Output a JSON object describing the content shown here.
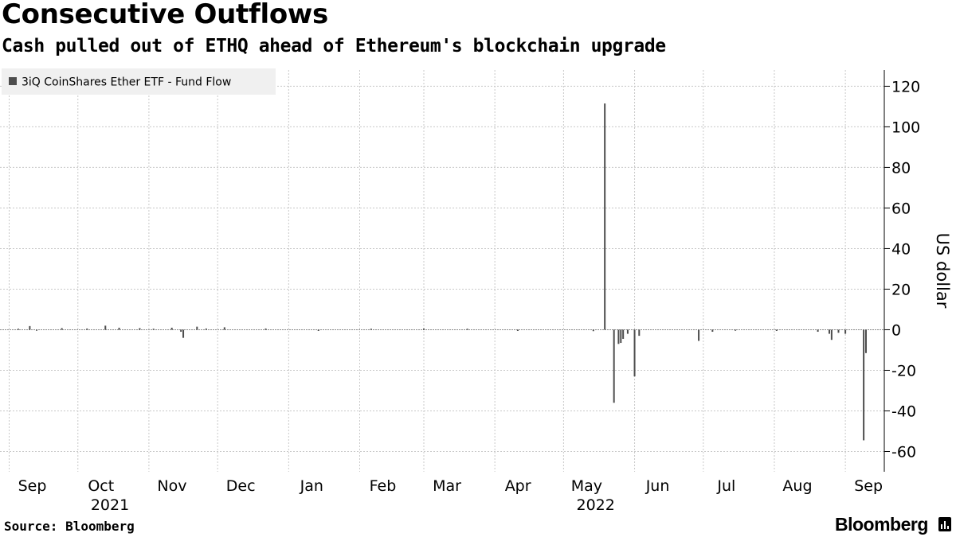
{
  "header": {
    "title": "Consecutive Outflows",
    "subtitle": "Cash pulled out of ETHQ ahead of Ethereum's blockchain upgrade"
  },
  "footer": {
    "source": "Source: Bloomberg",
    "brand": "Bloomberg"
  },
  "chart_data": {
    "type": "bar",
    "title": "Consecutive Outflows",
    "subtitle": "Cash pulled out of ETHQ ahead of Ethereum's blockchain upgrade",
    "ylabel": "US dollar",
    "xlabel": "",
    "ylim": [
      -70,
      128
    ],
    "yticks": [
      -60,
      -40,
      -20,
      0,
      20,
      40,
      60,
      80,
      100,
      120
    ],
    "x_range": [
      "2021-08-28",
      "2022-09-18"
    ],
    "x_tick_labels": [
      {
        "date": "2021-09-01",
        "label": "Sep"
      },
      {
        "date": "2021-10-01",
        "label": "Oct"
      },
      {
        "date": "2021-11-01",
        "label": "Nov"
      },
      {
        "date": "2021-12-01",
        "label": "Dec"
      },
      {
        "date": "2022-01-01",
        "label": "Jan"
      },
      {
        "date": "2022-02-01",
        "label": "Feb"
      },
      {
        "date": "2022-03-01",
        "label": "Mar"
      },
      {
        "date": "2022-04-01",
        "label": "Apr"
      },
      {
        "date": "2022-05-01",
        "label": "May"
      },
      {
        "date": "2022-06-01",
        "label": "Jun"
      },
      {
        "date": "2022-07-01",
        "label": "Jul"
      },
      {
        "date": "2022-08-01",
        "label": "Aug"
      },
      {
        "date": "2022-09-01",
        "label": "Sep"
      }
    ],
    "year_labels": [
      {
        "date": "2021-10-15",
        "label": "2021"
      },
      {
        "date": "2022-05-15",
        "label": "2022"
      }
    ],
    "grid": true,
    "legend_position": "top-left",
    "colors": {
      "bar": "#4d4d4d",
      "grid": "#c8c8c8",
      "legend_bg": "#f0f0f0"
    },
    "series": [
      {
        "name": "3iQ CoinShares Ether ETF - Fund Flow",
        "color": "#4d4d4d",
        "points": [
          {
            "x": "2021-09-05",
            "y": 0.5
          },
          {
            "x": "2021-09-10",
            "y": 1.8
          },
          {
            "x": "2021-09-13",
            "y": -0.5
          },
          {
            "x": "2021-09-24",
            "y": 0.8
          },
          {
            "x": "2021-10-05",
            "y": 0.6
          },
          {
            "x": "2021-10-13",
            "y": 2.0
          },
          {
            "x": "2021-10-19",
            "y": 1.0
          },
          {
            "x": "2021-10-28",
            "y": 0.8
          },
          {
            "x": "2021-11-03",
            "y": 0.5
          },
          {
            "x": "2021-11-11",
            "y": 1.0
          },
          {
            "x": "2021-11-15",
            "y": -1.0
          },
          {
            "x": "2021-11-16",
            "y": -4.0
          },
          {
            "x": "2021-11-22",
            "y": 1.5
          },
          {
            "x": "2021-11-26",
            "y": 0.6
          },
          {
            "x": "2021-12-04",
            "y": 1.2
          },
          {
            "x": "2021-12-22",
            "y": 0.6
          },
          {
            "x": "2022-01-14",
            "y": -0.6
          },
          {
            "x": "2022-02-06",
            "y": 0.5
          },
          {
            "x": "2022-03-01",
            "y": 0.6
          },
          {
            "x": "2022-03-20",
            "y": 0.5
          },
          {
            "x": "2022-04-11",
            "y": -0.6
          },
          {
            "x": "2022-05-14",
            "y": -0.7
          },
          {
            "x": "2022-05-19",
            "y": 111.5
          },
          {
            "x": "2022-05-23",
            "y": -36.0
          },
          {
            "x": "2022-05-25",
            "y": -7.0
          },
          {
            "x": "2022-05-26",
            "y": -6.5
          },
          {
            "x": "2022-05-27",
            "y": -4.5
          },
          {
            "x": "2022-05-29",
            "y": -2.0
          },
          {
            "x": "2022-06-01",
            "y": -23.0
          },
          {
            "x": "2022-06-03",
            "y": -3.0
          },
          {
            "x": "2022-06-29",
            "y": -5.5
          },
          {
            "x": "2022-07-05",
            "y": -1.0
          },
          {
            "x": "2022-07-15",
            "y": -0.5
          },
          {
            "x": "2022-08-02",
            "y": -0.6
          },
          {
            "x": "2022-08-20",
            "y": -1.0
          },
          {
            "x": "2022-08-25",
            "y": -2.0
          },
          {
            "x": "2022-08-26",
            "y": -5.0
          },
          {
            "x": "2022-08-29",
            "y": -1.5
          },
          {
            "x": "2022-09-01",
            "y": -2.0
          },
          {
            "x": "2022-09-09",
            "y": -54.5
          },
          {
            "x": "2022-09-10",
            "y": -11.5
          }
        ]
      }
    ]
  }
}
